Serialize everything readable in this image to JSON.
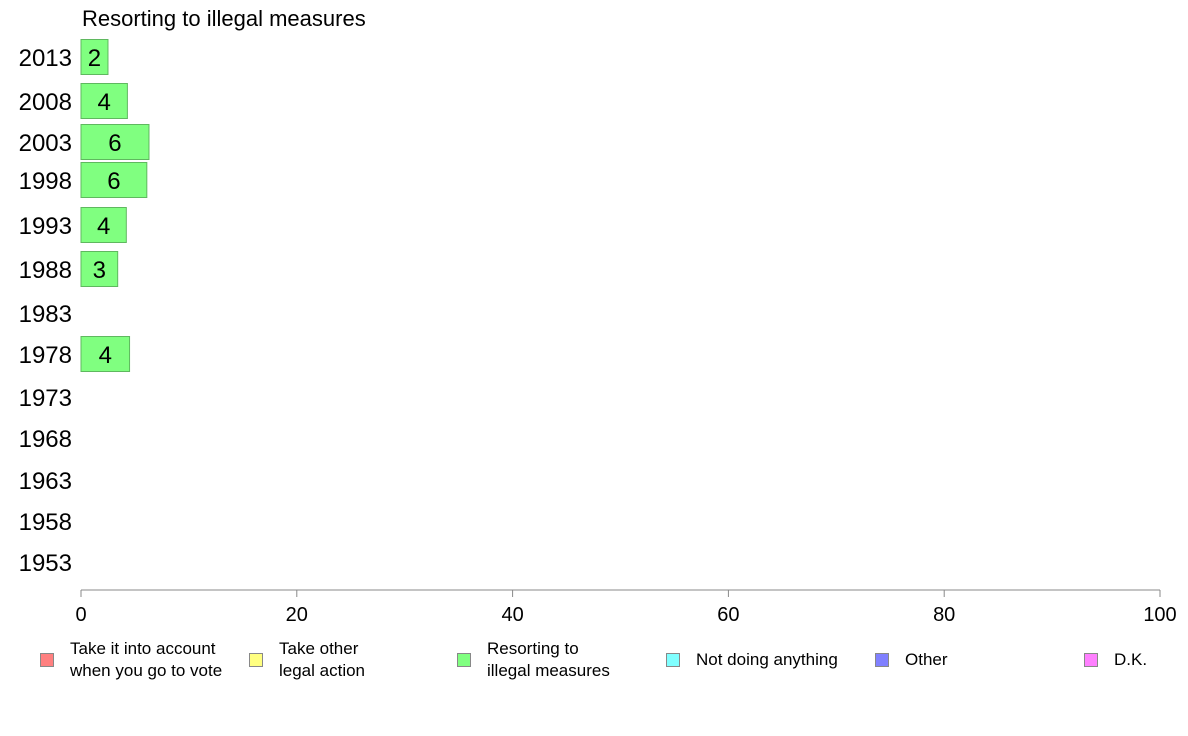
{
  "chart_data": {
    "type": "bar",
    "orientation": "horizontal",
    "title": "Resorting to illegal measures",
    "categories": [
      "2013",
      "2008",
      "2003",
      "1998",
      "1993",
      "1988",
      "1983",
      "1978",
      "1973",
      "1968",
      "1963",
      "1958",
      "1953"
    ],
    "series": [
      {
        "name": "Resorting to illegal measures",
        "color": "#80ff80",
        "values": [
          2.5,
          4.3,
          6.3,
          6.1,
          4.2,
          3.4,
          null,
          4.5,
          null,
          null,
          null,
          null,
          null
        ],
        "labels": [
          "2",
          "4",
          "6",
          "6",
          "4",
          "3",
          "",
          "4",
          "",
          "",
          "",
          "",
          ""
        ]
      }
    ],
    "xlim": [
      0,
      100
    ],
    "xticks": [
      "0",
      "20",
      "40",
      "60",
      "80",
      "100"
    ],
    "grid": false,
    "legend": {
      "placement": "bottom",
      "items": [
        {
          "label": "Take it into account\nwhen you go to vote",
          "color": "#ff8080"
        },
        {
          "label": "Take other\nlegal action",
          "color": "#ffff80"
        },
        {
          "label": "Resorting to\nillegal measures",
          "color": "#80ff80"
        },
        {
          "label": "Not doing anything",
          "color": "#80ffff"
        },
        {
          "label": "Other",
          "color": "#8080ff"
        },
        {
          "label": "D.K.",
          "color": "#ff80ff"
        }
      ]
    }
  }
}
